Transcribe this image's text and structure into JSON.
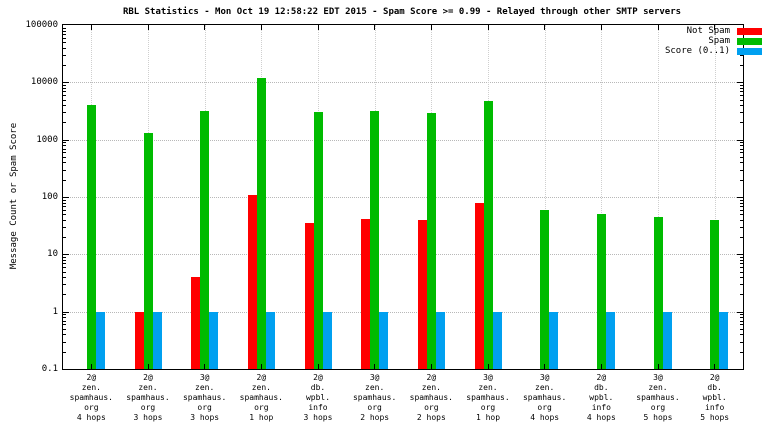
{
  "chart_data": {
    "type": "bar",
    "title": "RBL Statistics - Mon Oct 19 12:58:22 EDT 2015 - Spam Score >= 0.99 - Relayed through other SMTP servers",
    "ylabel": "Message Count or Spam Score",
    "xlabel": "",
    "yscale": "log",
    "ylim": [
      0.1,
      100000
    ],
    "ytick_values": [
      0.1,
      1,
      10,
      100,
      1000,
      10000,
      100000
    ],
    "ytick_labels": [
      "0.1",
      "1",
      "10",
      "100",
      "1000",
      "10000",
      "100000"
    ],
    "grid": true,
    "legend_position": "top-right",
    "categories": [
      [
        "2@",
        "zen.",
        "spamhaus.",
        "org",
        "4 hops"
      ],
      [
        "2@",
        "zen.",
        "spamhaus.",
        "org",
        "3 hops"
      ],
      [
        "3@",
        "zen.",
        "spamhaus.",
        "org",
        "3 hops"
      ],
      [
        "2@",
        "zen.",
        "spamhaus.",
        "org",
        "1 hop"
      ],
      [
        "2@",
        "db.",
        "wpbl.",
        "info",
        "3 hops"
      ],
      [
        "3@",
        "zen.",
        "spamhaus.",
        "org",
        "2 hops"
      ],
      [
        "2@",
        "zen.",
        "spamhaus.",
        "org",
        "2 hops"
      ],
      [
        "3@",
        "zen.",
        "spamhaus.",
        "org",
        "1 hop"
      ],
      [
        "3@",
        "zen.",
        "spamhaus.",
        "org",
        "4 hops"
      ],
      [
        "2@",
        "db.",
        "wpbl.",
        "info",
        "4 hops"
      ],
      [
        "3@",
        "zen.",
        "spamhaus.",
        "org",
        "5 hops"
      ],
      [
        "2@",
        "db.",
        "wpbl.",
        "info",
        "5 hops"
      ]
    ],
    "series": [
      {
        "name": "Not Spam",
        "color": "#ff0000",
        "values": [
          null,
          1,
          4,
          110,
          35,
          42,
          40,
          80,
          null,
          null,
          null,
          null
        ]
      },
      {
        "name": "Spam",
        "color": "#00bb00",
        "values": [
          4000,
          1300,
          3200,
          12000,
          3000,
          3200,
          2900,
          4800,
          60,
          50,
          45,
          40
        ]
      },
      {
        "name": "Score (0..1)",
        "color": "#00a0f0",
        "values": [
          1,
          1,
          1,
          1,
          1,
          1,
          1,
          1,
          1,
          1,
          1,
          1
        ]
      }
    ]
  }
}
